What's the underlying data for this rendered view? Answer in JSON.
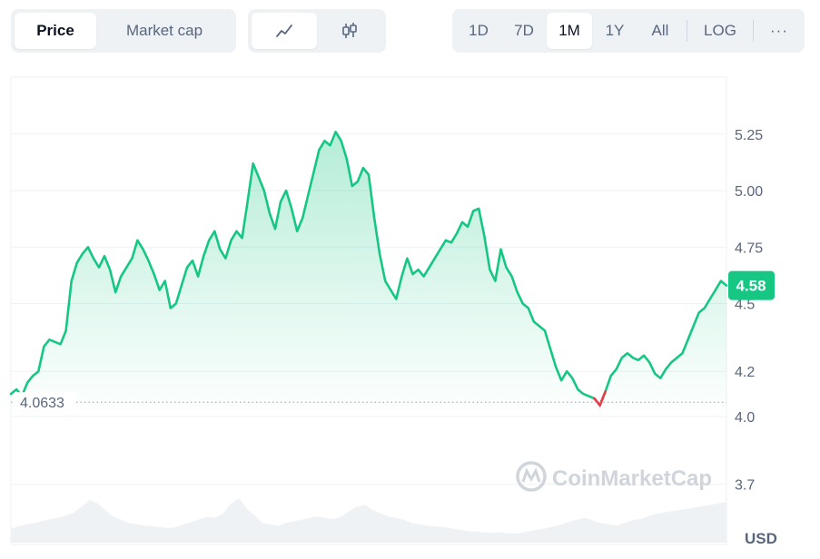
{
  "toolbar": {
    "metric_tabs": [
      {
        "label": "Price",
        "active": true
      },
      {
        "label": "Market cap",
        "active": false
      }
    ],
    "chart_types": [
      {
        "icon": "line-chart-icon",
        "active": true
      },
      {
        "icon": "candlestick-icon",
        "active": false
      }
    ],
    "ranges": [
      {
        "label": "1D",
        "active": false
      },
      {
        "label": "7D",
        "active": false
      },
      {
        "label": "1M",
        "active": true
      },
      {
        "label": "1Y",
        "active": false
      },
      {
        "label": "All",
        "active": false
      }
    ],
    "log_label": "LOG",
    "more_label": "···"
  },
  "watermark": "CoinMarketCap",
  "chart_data": {
    "type": "area",
    "currency_label": "USD",
    "ylim": [
      3.6,
      5.55
    ],
    "yticks": [
      "5.25",
      "5.00",
      "4.75",
      "4.5",
      "4.2",
      "4.0",
      "3.7"
    ],
    "ytick_values": [
      5.25,
      5.0,
      4.75,
      4.5,
      4.2,
      4.0,
      3.7
    ],
    "reference_value": 4.0633,
    "reference_label": "4.0633",
    "current_value": 4.58,
    "current_label": "4.58",
    "colors": {
      "up": "#16c784",
      "down": "#ea3943",
      "grid": "#eff2f5",
      "text": "#58667e",
      "volume": "#eff2f5"
    },
    "series": [
      {
        "values": [
          4.1,
          4.12,
          4.09,
          4.15,
          4.18,
          4.2,
          4.31,
          4.34,
          4.33,
          4.32,
          4.38,
          4.6,
          4.68,
          4.72,
          4.75,
          4.7,
          4.66,
          4.71,
          4.65,
          4.55,
          4.62,
          4.66,
          4.7,
          4.78,
          4.74,
          4.69,
          4.63,
          4.56,
          4.6,
          4.48,
          4.5,
          4.58,
          4.66,
          4.69,
          4.62,
          4.71,
          4.78,
          4.82,
          4.74,
          4.7,
          4.78,
          4.82,
          4.79,
          4.95,
          5.12,
          5.06,
          5.0,
          4.9,
          4.83,
          4.95,
          5.0,
          4.92,
          4.82,
          4.88,
          4.98,
          5.08,
          5.18,
          5.22,
          5.2,
          5.26,
          5.22,
          5.14,
          5.02,
          5.04,
          5.1,
          5.07,
          4.88,
          4.72,
          4.6,
          4.56,
          4.52,
          4.62,
          4.7,
          4.63,
          4.65,
          4.62,
          4.66,
          4.7,
          4.74,
          4.78,
          4.77,
          4.81,
          4.86,
          4.84,
          4.91,
          4.92,
          4.8,
          4.65,
          4.6,
          4.74,
          4.66,
          4.62,
          4.55,
          4.5,
          4.48,
          4.42,
          4.4,
          4.38,
          4.3,
          4.22,
          4.16,
          4.2,
          4.17,
          4.12,
          4.1,
          4.09,
          4.08,
          4.05,
          4.11,
          4.18,
          4.21,
          4.26,
          4.28,
          4.26,
          4.25,
          4.27,
          4.24,
          4.19,
          4.17,
          4.21,
          4.24,
          4.26,
          4.28,
          4.34,
          4.4,
          4.46,
          4.48,
          4.52,
          4.56,
          4.6,
          4.58
        ]
      }
    ],
    "low_index": 107,
    "volume": [
      0.22,
      0.25,
      0.28,
      0.3,
      0.33,
      0.36,
      0.38,
      0.42,
      0.46,
      0.55,
      0.65,
      0.6,
      0.5,
      0.4,
      0.35,
      0.3,
      0.28,
      0.26,
      0.25,
      0.24,
      0.22,
      0.24,
      0.28,
      0.32,
      0.36,
      0.4,
      0.38,
      0.45,
      0.6,
      0.68,
      0.52,
      0.42,
      0.3,
      0.28,
      0.26,
      0.3,
      0.33,
      0.35,
      0.38,
      0.4,
      0.38,
      0.36,
      0.4,
      0.48,
      0.55,
      0.58,
      0.5,
      0.45,
      0.4,
      0.38,
      0.35,
      0.3,
      0.28,
      0.26,
      0.25,
      0.24,
      0.22,
      0.2,
      0.18,
      0.17,
      0.16,
      0.15,
      0.16,
      0.15,
      0.14,
      0.15,
      0.18,
      0.2,
      0.22,
      0.25,
      0.28,
      0.32,
      0.35,
      0.38,
      0.34,
      0.3,
      0.28,
      0.26,
      0.3,
      0.34,
      0.36,
      0.4,
      0.44,
      0.46,
      0.48,
      0.5,
      0.52,
      0.54,
      0.56,
      0.58,
      0.6,
      0.62
    ]
  }
}
